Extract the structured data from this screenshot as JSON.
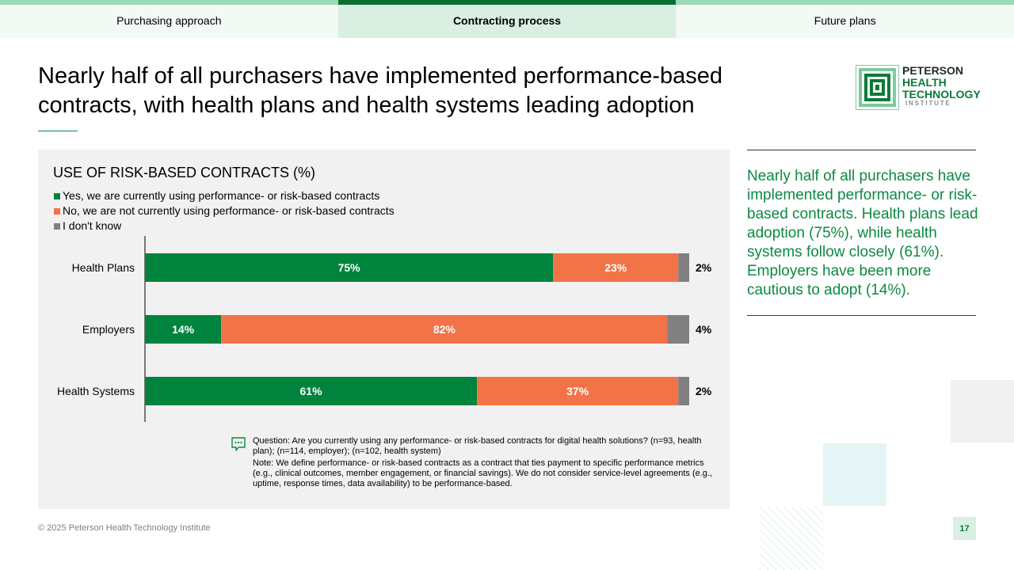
{
  "tabs": [
    {
      "label": "Purchasing approach",
      "active": false
    },
    {
      "label": "Contracting process",
      "active": true
    },
    {
      "label": "Future plans",
      "active": false
    }
  ],
  "title": "Nearly half of all purchasers have implemented performance-based contracts, with health plans and health systems leading adoption",
  "logo": {
    "line1": "PETERSON",
    "line2": "HEALTH",
    "line3": "TECHNOLOGY",
    "line4": "INSTITUTE"
  },
  "colors": {
    "yes": "#00843d",
    "no": "#f27347",
    "dont_know": "#808080",
    "accent": "#0b8a42"
  },
  "chart_data": {
    "type": "bar",
    "orientation": "horizontal",
    "stacked": true,
    "title": "USE OF RISK-BASED CONTRACTS (%)",
    "categories": [
      "Health Plans",
      "Employers",
      "Health Systems"
    ],
    "series": [
      {
        "name": "Yes, we are currently using performance- or risk-based contracts",
        "values": [
          75,
          14,
          61
        ],
        "labels": [
          "75%",
          "14%",
          "61%"
        ]
      },
      {
        "name": "No, we are not currently using performance- or risk-based contracts",
        "values": [
          23,
          82,
          37
        ],
        "labels": [
          "23%",
          "82%",
          "37%"
        ]
      },
      {
        "name": "I don't know",
        "values": [
          2,
          4,
          2
        ],
        "labels": [
          "2%",
          "4%",
          "2%"
        ]
      }
    ],
    "xlim": [
      0,
      100
    ],
    "legend": "top-left"
  },
  "note": {
    "question": "Question: Are you currently using any performance- or risk-based contracts for digital health solutions? (n=93, health plan); (n=114, employer); (n=102, health system)",
    "definition": "Note: We define performance- or risk-based contracts as a contract that ties payment to specific performance metrics (e.g., clinical outcomes, member engagement, or financial savings). We do not consider service-level agreements (e.g., uptime, response times, data availability) to be performance-based."
  },
  "sidebar_text": "Nearly half of all purchasers have implemented performance- or risk-based contracts. Health plans lead adoption (75%), while health systems follow closely (61%). Employers have been more cautious to adopt (14%).",
  "footer": "© 2025 Peterson Health Technology Institute",
  "page_number": "17"
}
